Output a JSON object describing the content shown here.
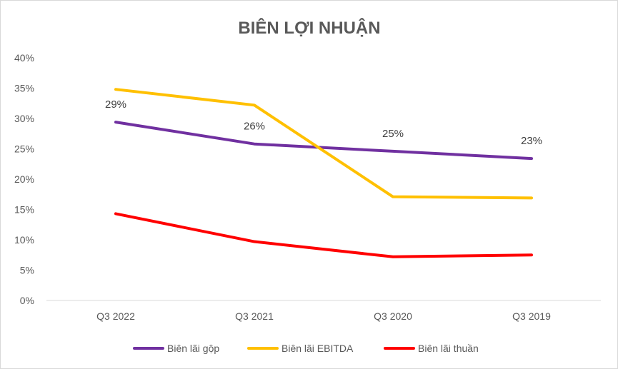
{
  "chart_data": {
    "type": "line",
    "title": "BIÊN LỢI NHUẬN",
    "categories": [
      "Q3 2022",
      "Q3 2021",
      "Q3 2020",
      "Q3 2019"
    ],
    "y_ticks": [
      "0%",
      "5%",
      "10%",
      "15%",
      "20%",
      "25%",
      "30%",
      "35%",
      "40%"
    ],
    "ylim": [
      0,
      40
    ],
    "grid": false,
    "legend_position": "bottom",
    "series": [
      {
        "name": "Biên lãi gộp",
        "color": "#7030a0",
        "values": [
          29.4,
          25.8,
          24.6,
          23.4
        ],
        "data_labels": [
          "29%",
          "26%",
          "25%",
          "23%"
        ]
      },
      {
        "name": "Biên lãi EBITDA",
        "color": "#ffc000",
        "values": [
          34.8,
          32.2,
          17.1,
          16.9
        ]
      },
      {
        "name": "Biên lãi thuần",
        "color": "#ff0000",
        "values": [
          14.3,
          9.7,
          7.2,
          7.5
        ]
      }
    ]
  }
}
